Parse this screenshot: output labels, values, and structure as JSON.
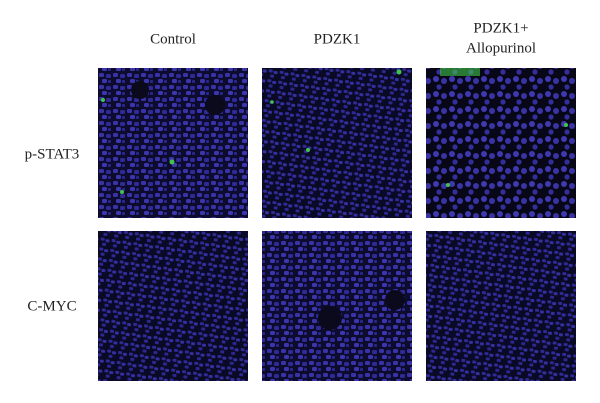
{
  "figure": {
    "columns": [
      [
        "Control"
      ],
      [
        "PDZK1"
      ],
      [
        "PDZK1+",
        "Allopurinol"
      ]
    ],
    "rows": [
      "p-STAT3",
      "C-MYC"
    ]
  }
}
